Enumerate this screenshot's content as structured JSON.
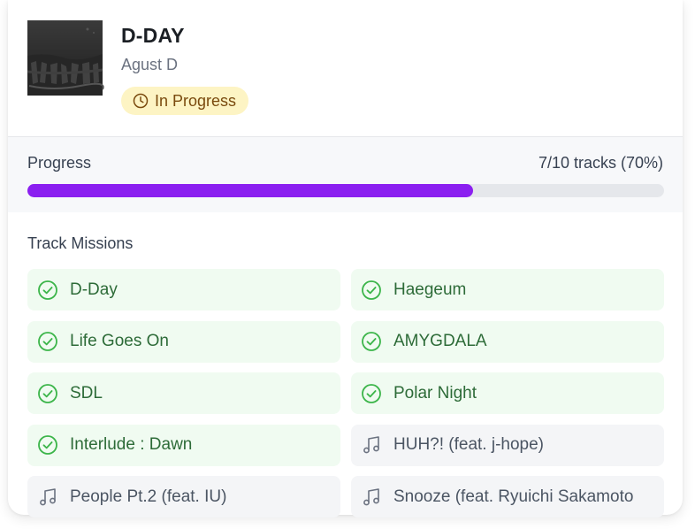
{
  "album": {
    "title": "D-DAY",
    "artist": "Agust D",
    "status": "In Progress",
    "cover_icon": "album-cover-image"
  },
  "progress": {
    "label": "Progress",
    "count_text": "7/10 tracks (70%)",
    "completed": 7,
    "total": 10,
    "fraction": 0.7,
    "bar_color": "#8b1ff0"
  },
  "missions": {
    "title": "Track Missions",
    "tracks": [
      {
        "name": "D-Day",
        "done": true
      },
      {
        "name": "Haegeum",
        "done": true
      },
      {
        "name": "Life Goes On",
        "done": true
      },
      {
        "name": "AMYGDALA",
        "done": true
      },
      {
        "name": "SDL",
        "done": true
      },
      {
        "name": "Polar Night",
        "done": true
      },
      {
        "name": "Interlude : Dawn",
        "done": true
      },
      {
        "name": "HUH?! (feat. j-hope)",
        "done": false
      },
      {
        "name": "People Pt.2 (feat. IU)",
        "done": false
      },
      {
        "name": "Snooze (feat. Ryuichi Sakamoto",
        "done": false
      }
    ]
  },
  "colors": {
    "done_bg": "#f0fbf1",
    "done_text": "#2d6b38",
    "check": "#3cb54a",
    "todo_bg": "#f4f5f7",
    "badge_bg": "#fdf4c4",
    "badge_text": "#7a4a0e"
  }
}
